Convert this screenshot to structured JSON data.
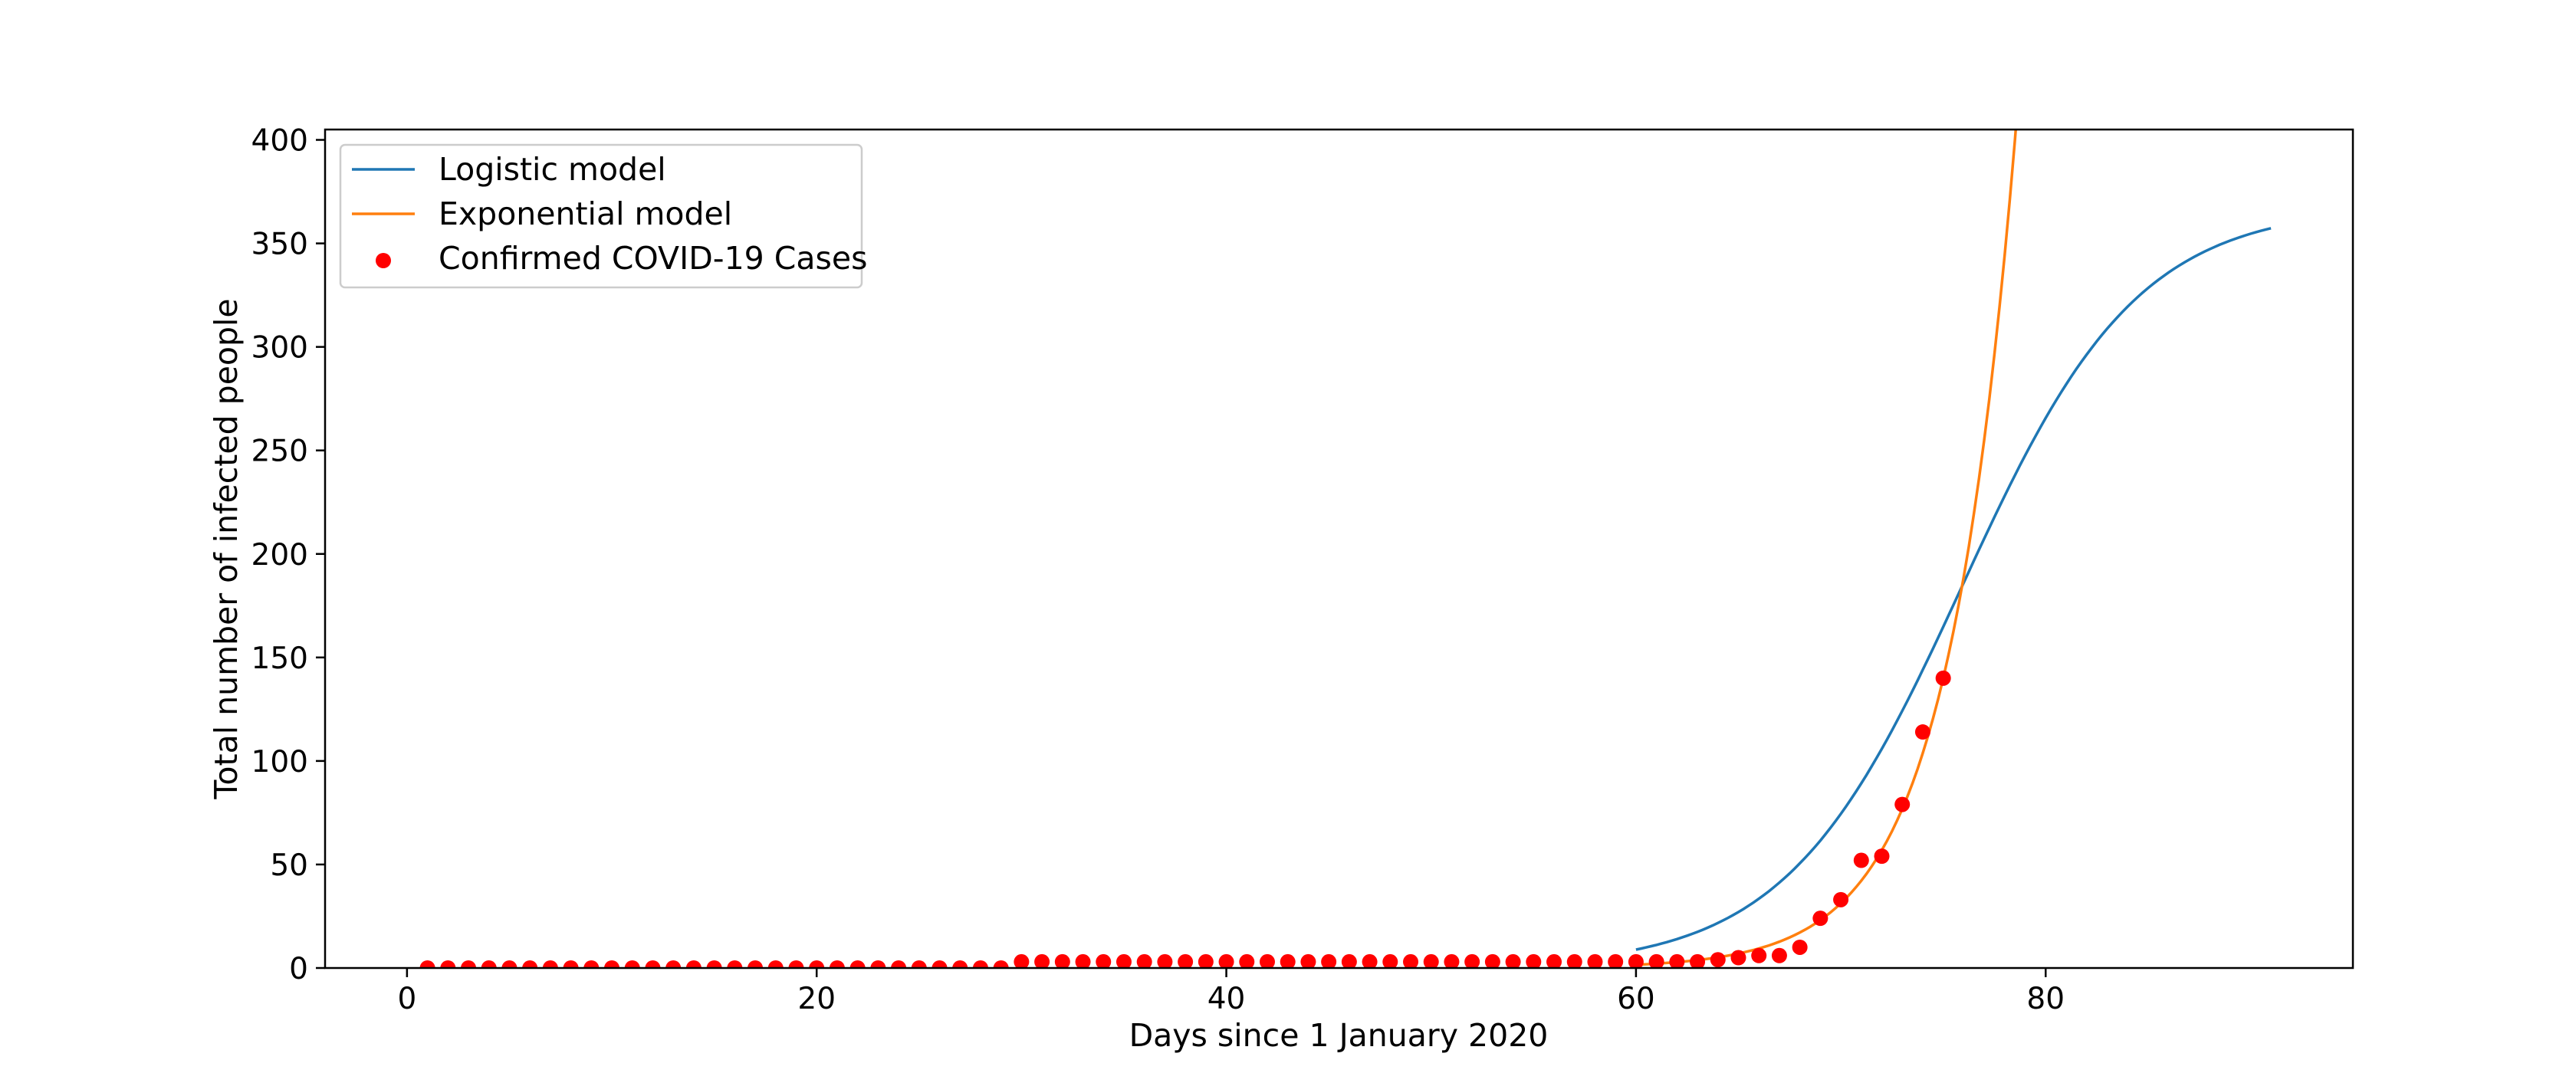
{
  "chart_data": {
    "type": "line",
    "title": "",
    "xlabel": "Days since 1 January 2020",
    "ylabel": "Total number of infected people",
    "xlim": [
      -4,
      95
    ],
    "ylim": [
      0,
      405
    ],
    "xticks": [
      0,
      20,
      40,
      60,
      80
    ],
    "yticks": [
      0,
      50,
      100,
      150,
      200,
      250,
      300,
      350,
      400
    ],
    "grid": false,
    "legend_position": "top-left",
    "legend": [
      "Logistic model",
      "Exponential model",
      "Confirmed COVID-19 Cases"
    ],
    "series": [
      {
        "name": "Logistic model",
        "kind": "line",
        "color": "#1f77b4",
        "model": "logistic",
        "params": {
          "a": 4.3,
          "b": 75.9,
          "c": 368
        },
        "x_range": [
          60,
          91
        ]
      },
      {
        "name": "Exponential model",
        "kind": "line",
        "color": "#ff7f0e",
        "model": "exponential",
        "params": {
          "x0": 75,
          "y0": 140,
          "k": 0.3
        },
        "x_range": [
          60,
          79
        ]
      },
      {
        "name": "Confirmed COVID-19 Cases",
        "kind": "scatter",
        "color": "#ff0000",
        "x": [
          1,
          2,
          3,
          4,
          5,
          6,
          7,
          8,
          9,
          10,
          11,
          12,
          13,
          14,
          15,
          16,
          17,
          18,
          19,
          20,
          21,
          22,
          23,
          24,
          25,
          26,
          27,
          28,
          29,
          30,
          31,
          32,
          33,
          34,
          35,
          36,
          37,
          38,
          39,
          40,
          41,
          42,
          43,
          44,
          45,
          46,
          47,
          48,
          49,
          50,
          51,
          52,
          53,
          54,
          55,
          56,
          57,
          58,
          59,
          60,
          61,
          62,
          63,
          64,
          65,
          66,
          67,
          68,
          69,
          70,
          71,
          72,
          73,
          74,
          75
        ],
        "y": [
          0,
          0,
          0,
          0,
          0,
          0,
          0,
          0,
          0,
          0,
          0,
          0,
          0,
          0,
          0,
          0,
          0,
          0,
          0,
          0,
          0,
          0,
          0,
          0,
          0,
          0,
          0,
          0,
          0,
          3,
          3,
          3,
          3,
          3,
          3,
          3,
          3,
          3,
          3,
          3,
          3,
          3,
          3,
          3,
          3,
          3,
          3,
          3,
          3,
          3,
          3,
          3,
          3,
          3,
          3,
          3,
          3,
          3,
          3,
          3,
          3,
          3,
          3,
          4,
          5,
          6,
          6,
          10,
          24,
          33,
          52,
          54,
          79,
          114,
          140
        ]
      }
    ]
  }
}
